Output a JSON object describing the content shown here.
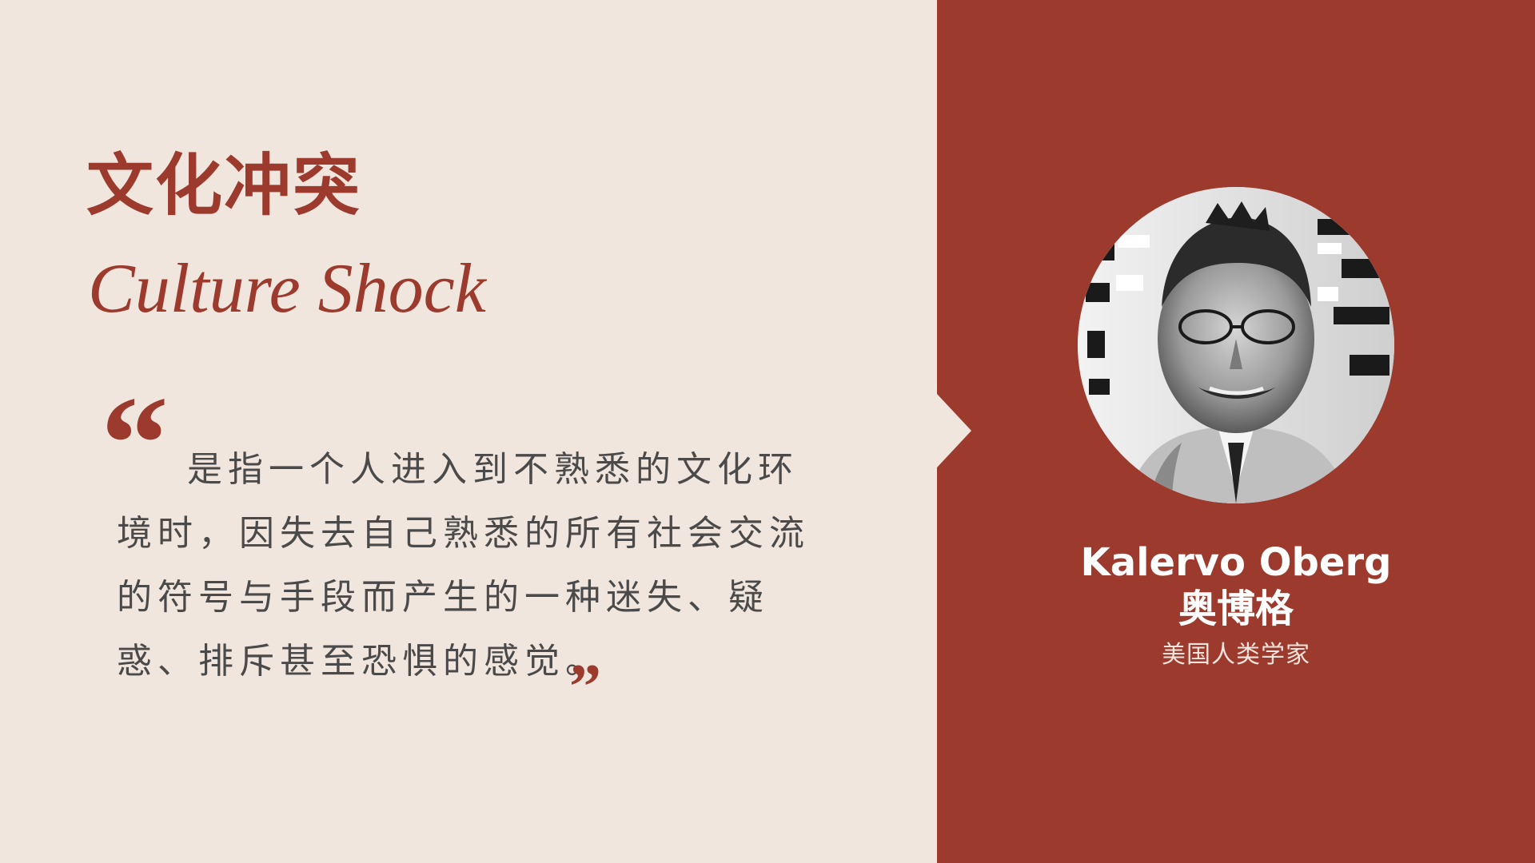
{
  "slide": {
    "title_cn": "文化冲突",
    "title_en": "Culture Shock",
    "quote": {
      "open_mark": "“",
      "text": "是指一个人进入到不熟悉的文化环境时，因失去自己熟悉的所有社会交流的符号与手段而产生的一种迷失、疑惑、排斥甚至恐惧的感觉。",
      "close_mark": "”"
    }
  },
  "person": {
    "name_en": "Kalervo Oberg",
    "name_cn": "奥博格",
    "title": "美国人类学家",
    "photo_icon": "portrait-photo"
  },
  "colors": {
    "background": "#F0E6DD",
    "accent": "#9C3A2D",
    "body_text": "#4A4A4A",
    "panel_text": "#FFFFFF"
  }
}
